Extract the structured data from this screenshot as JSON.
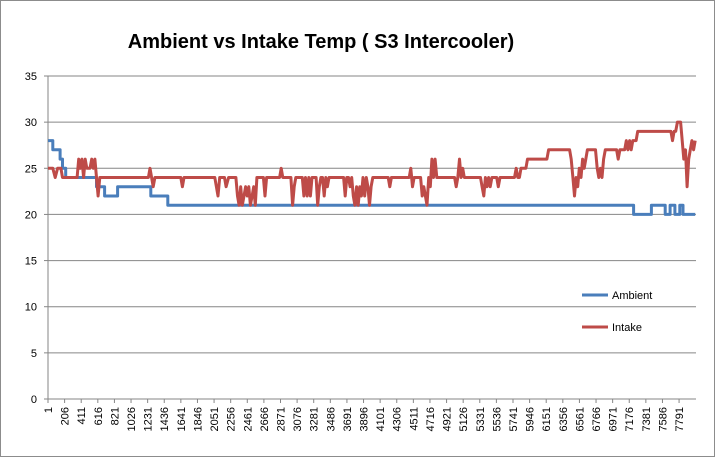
{
  "chart_data": {
    "type": "line",
    "title": "Ambient vs Intake Temp ( S3 Intercooler)",
    "xlabel": "",
    "ylabel": "",
    "ylim": [
      0,
      35
    ],
    "yticks": [
      0,
      5,
      10,
      15,
      20,
      25,
      30,
      35
    ],
    "xlim": [
      1,
      8000
    ],
    "xticks": [
      1,
      206,
      411,
      616,
      821,
      1026,
      1231,
      1436,
      1641,
      1846,
      2051,
      2256,
      2461,
      2666,
      2871,
      3076,
      3281,
      3486,
      3691,
      3896,
      4101,
      4306,
      4511,
      4716,
      4921,
      5126,
      5331,
      5536,
      5741,
      5946,
      6151,
      6356,
      6561,
      6766,
      6971,
      7176,
      7381,
      7586,
      7791
    ],
    "grid": "horizontal",
    "legend_position": "right",
    "series": [
      {
        "name": "Ambient",
        "color": "#4a7ebb",
        "points": [
          [
            1,
            28
          ],
          [
            60,
            28
          ],
          [
            60,
            27
          ],
          [
            150,
            27
          ],
          [
            150,
            26
          ],
          [
            180,
            26
          ],
          [
            180,
            25
          ],
          [
            220,
            25
          ],
          [
            220,
            24
          ],
          [
            600,
            24
          ],
          [
            600,
            23
          ],
          [
            700,
            23
          ],
          [
            700,
            22
          ],
          [
            860,
            22
          ],
          [
            860,
            23
          ],
          [
            1270,
            23
          ],
          [
            1270,
            22
          ],
          [
            1480,
            22
          ],
          [
            1480,
            21
          ],
          [
            7230,
            21
          ],
          [
            7230,
            20
          ],
          [
            7450,
            20
          ],
          [
            7450,
            21
          ],
          [
            7620,
            21
          ],
          [
            7620,
            20
          ],
          [
            7680,
            20
          ],
          [
            7680,
            21
          ],
          [
            7740,
            21
          ],
          [
            7740,
            20
          ],
          [
            7800,
            20
          ],
          [
            7800,
            21
          ],
          [
            7840,
            21
          ],
          [
            7840,
            20
          ],
          [
            7990,
            20
          ]
        ]
      },
      {
        "name": "Intake",
        "color": "#be4b48",
        "points": [
          [
            1,
            25
          ],
          [
            60,
            25
          ],
          [
            90,
            24
          ],
          [
            120,
            25
          ],
          [
            160,
            25
          ],
          [
            180,
            24
          ],
          [
            360,
            24
          ],
          [
            380,
            26
          ],
          [
            400,
            25
          ],
          [
            420,
            26
          ],
          [
            440,
            24
          ],
          [
            460,
            26
          ],
          [
            480,
            25
          ],
          [
            520,
            25
          ],
          [
            540,
            26
          ],
          [
            560,
            25
          ],
          [
            580,
            26
          ],
          [
            600,
            24
          ],
          [
            620,
            22
          ],
          [
            640,
            24
          ],
          [
            680,
            24
          ],
          [
            700,
            24
          ],
          [
            1240,
            24
          ],
          [
            1260,
            25
          ],
          [
            1280,
            24
          ],
          [
            1300,
            23
          ],
          [
            1320,
            24
          ],
          [
            1640,
            24
          ],
          [
            1660,
            23
          ],
          [
            1680,
            24
          ],
          [
            2060,
            24
          ],
          [
            2080,
            23
          ],
          [
            2100,
            22
          ],
          [
            2120,
            24
          ],
          [
            2180,
            24
          ],
          [
            2200,
            23
          ],
          [
            2230,
            24
          ],
          [
            2320,
            24
          ],
          [
            2340,
            22
          ],
          [
            2360,
            21
          ],
          [
            2380,
            23
          ],
          [
            2400,
            21
          ],
          [
            2420,
            22
          ],
          [
            2440,
            23
          ],
          [
            2460,
            22
          ],
          [
            2480,
            23
          ],
          [
            2500,
            21
          ],
          [
            2520,
            22
          ],
          [
            2540,
            23
          ],
          [
            2560,
            21
          ],
          [
            2580,
            24
          ],
          [
            2660,
            24
          ],
          [
            2680,
            22
          ],
          [
            2700,
            24
          ],
          [
            2860,
            24
          ],
          [
            2880,
            25
          ],
          [
            2900,
            24
          ],
          [
            3000,
            24
          ],
          [
            3020,
            21
          ],
          [
            3040,
            23
          ],
          [
            3060,
            24
          ],
          [
            3140,
            24
          ],
          [
            3160,
            22
          ],
          [
            3180,
            24
          ],
          [
            3200,
            22
          ],
          [
            3220,
            24
          ],
          [
            3240,
            22
          ],
          [
            3260,
            24
          ],
          [
            3310,
            24
          ],
          [
            3330,
            21
          ],
          [
            3350,
            23
          ],
          [
            3370,
            24
          ],
          [
            3390,
            24
          ],
          [
            3410,
            22
          ],
          [
            3430,
            24
          ],
          [
            3450,
            23
          ],
          [
            3470,
            24
          ],
          [
            3650,
            24
          ],
          [
            3670,
            22
          ],
          [
            3690,
            24
          ],
          [
            3710,
            24
          ],
          [
            3730,
            23
          ],
          [
            3750,
            24
          ],
          [
            3770,
            22
          ],
          [
            3790,
            21
          ],
          [
            3810,
            23
          ],
          [
            3830,
            21
          ],
          [
            3850,
            23
          ],
          [
            3870,
            22
          ],
          [
            3890,
            24
          ],
          [
            3910,
            22
          ],
          [
            3930,
            24
          ],
          [
            3950,
            23
          ],
          [
            3970,
            21
          ],
          [
            3990,
            23
          ],
          [
            4010,
            24
          ],
          [
            4200,
            24
          ],
          [
            4220,
            23
          ],
          [
            4240,
            24
          ],
          [
            4460,
            24
          ],
          [
            4480,
            25
          ],
          [
            4500,
            23
          ],
          [
            4520,
            24
          ],
          [
            4600,
            24
          ],
          [
            4620,
            22
          ],
          [
            4640,
            23
          ],
          [
            4660,
            22
          ],
          [
            4680,
            21
          ],
          [
            4700,
            24
          ],
          [
            4720,
            23
          ],
          [
            4740,
            26
          ],
          [
            4760,
            24
          ],
          [
            4780,
            26
          ],
          [
            4800,
            24
          ],
          [
            5020,
            24
          ],
          [
            5040,
            23
          ],
          [
            5060,
            24
          ],
          [
            5080,
            26
          ],
          [
            5100,
            24
          ],
          [
            5120,
            25
          ],
          [
            5140,
            24
          ],
          [
            5340,
            24
          ],
          [
            5360,
            23
          ],
          [
            5380,
            22
          ],
          [
            5400,
            24
          ],
          [
            5420,
            23
          ],
          [
            5440,
            24
          ],
          [
            5460,
            23
          ],
          [
            5480,
            24
          ],
          [
            5540,
            24
          ],
          [
            5560,
            23
          ],
          [
            5580,
            24
          ],
          [
            5760,
            24
          ],
          [
            5780,
            25
          ],
          [
            5800,
            24
          ],
          [
            5820,
            24
          ],
          [
            5840,
            25
          ],
          [
            5900,
            25
          ],
          [
            5920,
            26
          ],
          [
            6160,
            26
          ],
          [
            6180,
            27
          ],
          [
            6440,
            27
          ],
          [
            6460,
            26
          ],
          [
            6480,
            24
          ],
          [
            6500,
            22
          ],
          [
            6520,
            24
          ],
          [
            6540,
            23
          ],
          [
            6560,
            25
          ],
          [
            6580,
            24
          ],
          [
            6600,
            26
          ],
          [
            6620,
            25
          ],
          [
            6640,
            26
          ],
          [
            6660,
            27
          ],
          [
            6760,
            27
          ],
          [
            6780,
            25
          ],
          [
            6800,
            24
          ],
          [
            6820,
            25
          ],
          [
            6840,
            24
          ],
          [
            6860,
            26
          ],
          [
            6880,
            27
          ],
          [
            7020,
            27
          ],
          [
            7040,
            26
          ],
          [
            7060,
            27
          ],
          [
            7120,
            27
          ],
          [
            7140,
            28
          ],
          [
            7160,
            27
          ],
          [
            7180,
            28
          ],
          [
            7200,
            27
          ],
          [
            7220,
            28
          ],
          [
            7260,
            28
          ],
          [
            7280,
            29
          ],
          [
            7690,
            29
          ],
          [
            7710,
            28
          ],
          [
            7730,
            29
          ],
          [
            7750,
            29
          ],
          [
            7770,
            30
          ],
          [
            7810,
            30
          ],
          [
            7830,
            28
          ],
          [
            7850,
            26
          ],
          [
            7870,
            27
          ],
          [
            7890,
            23
          ],
          [
            7910,
            26
          ],
          [
            7930,
            27
          ],
          [
            7950,
            28
          ],
          [
            7970,
            27
          ],
          [
            7990,
            28
          ]
        ]
      }
    ]
  }
}
